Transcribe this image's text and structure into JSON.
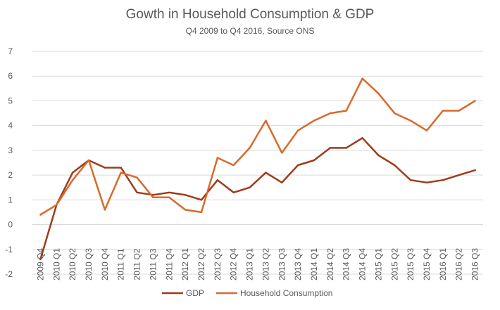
{
  "chart_data": {
    "type": "line",
    "title": "Gowth in Household Consumption & GDP",
    "subtitle": "Q4 2009 to Q4 2016, Source  ONS",
    "xlabel": "",
    "ylabel": "",
    "ylim": [
      -2,
      7
    ],
    "yticks": [
      -2,
      -1,
      0,
      1,
      2,
      3,
      4,
      5,
      6,
      7
    ],
    "grid": true,
    "legend_position": "bottom",
    "categories": [
      "2009 Q4",
      "2010 Q1",
      "2010 Q2",
      "2010 Q3",
      "2010 Q4",
      "2011 Q1",
      "2011 Q2",
      "2011 Q3",
      "2011 Q4",
      "2012 Q1",
      "2012 Q2",
      "2012 Q3",
      "2012 Q4",
      "2013 Q1",
      "2013 Q2",
      "2013 Q3",
      "2013 Q4",
      "2014 Q1",
      "2014 Q2",
      "2014 Q3",
      "2014 Q4",
      "2015 Q1",
      "2015 Q2",
      "2015 Q3",
      "2015 Q4",
      "2016 Q1",
      "2016 Q2",
      "2016 Q3"
    ],
    "series": [
      {
        "name": "GDP",
        "color": "#9E3B1B",
        "values": [
          -1.4,
          0.8,
          2.1,
          2.6,
          2.3,
          2.3,
          1.3,
          1.2,
          1.3,
          1.2,
          1.0,
          1.8,
          1.3,
          1.5,
          2.1,
          1.7,
          2.4,
          2.6,
          3.1,
          3.1,
          3.5,
          2.8,
          2.4,
          1.8,
          1.7,
          1.8,
          2.0,
          2.2
        ]
      },
      {
        "name": "Household Consumption",
        "color": "#D9692A",
        "values": [
          0.4,
          0.8,
          1.8,
          2.6,
          0.6,
          2.1,
          1.9,
          1.1,
          1.1,
          0.6,
          0.5,
          2.7,
          2.4,
          3.1,
          4.2,
          2.9,
          3.8,
          4.2,
          4.5,
          4.6,
          5.9,
          5.3,
          4.5,
          4.2,
          3.8,
          4.6,
          4.6,
          5.0
        ]
      }
    ]
  }
}
